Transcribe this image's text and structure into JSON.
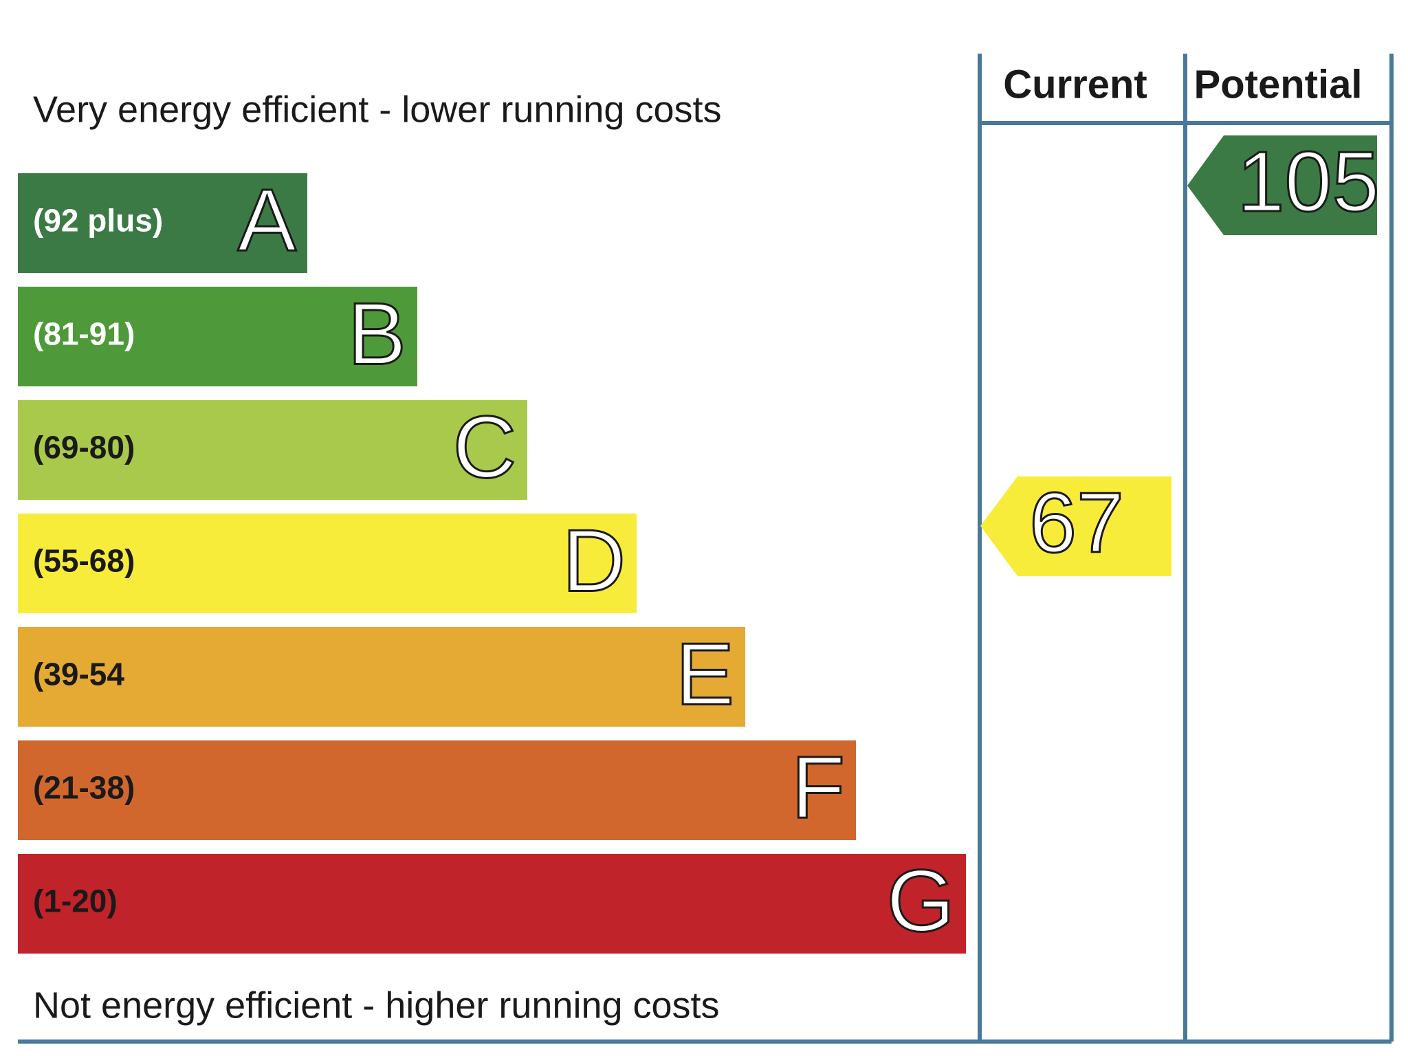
{
  "header": {
    "top_note": "Very energy efficient - lower running costs",
    "bottom_note": "Not energy efficient - higher running costs"
  },
  "columns": [
    "Current",
    "Potential"
  ],
  "bands": [
    {
      "range": "(92 plus)",
      "letter": "A",
      "color": "#3b7a45",
      "text_color": "#ffffff"
    },
    {
      "range": "(81-91)",
      "letter": "B",
      "color": "#4e9a3a",
      "text_color": "#ffffff"
    },
    {
      "range": "(69-80)",
      "letter": "C",
      "color": "#a8c94b",
      "text_color": "#1a1a1a"
    },
    {
      "range": "(55-68)",
      "letter": "D",
      "color": "#f8ec3a",
      "text_color": "#1a1a1a"
    },
    {
      "range": "(39-54",
      "letter": "E",
      "color": "#e4aa33",
      "text_color": "#1a1a1a"
    },
    {
      "range": "(21-38)",
      "letter": "F",
      "color": "#d2672e",
      "text_color": "#1a1a1a"
    },
    {
      "range": "(1-20)",
      "letter": "G",
      "color": "#c0232a",
      "text_color": "#1a1a1a"
    }
  ],
  "current": {
    "value": "67",
    "color": "#f8ec3a"
  },
  "potential": {
    "value": "105",
    "color": "#3b7a45"
  }
}
